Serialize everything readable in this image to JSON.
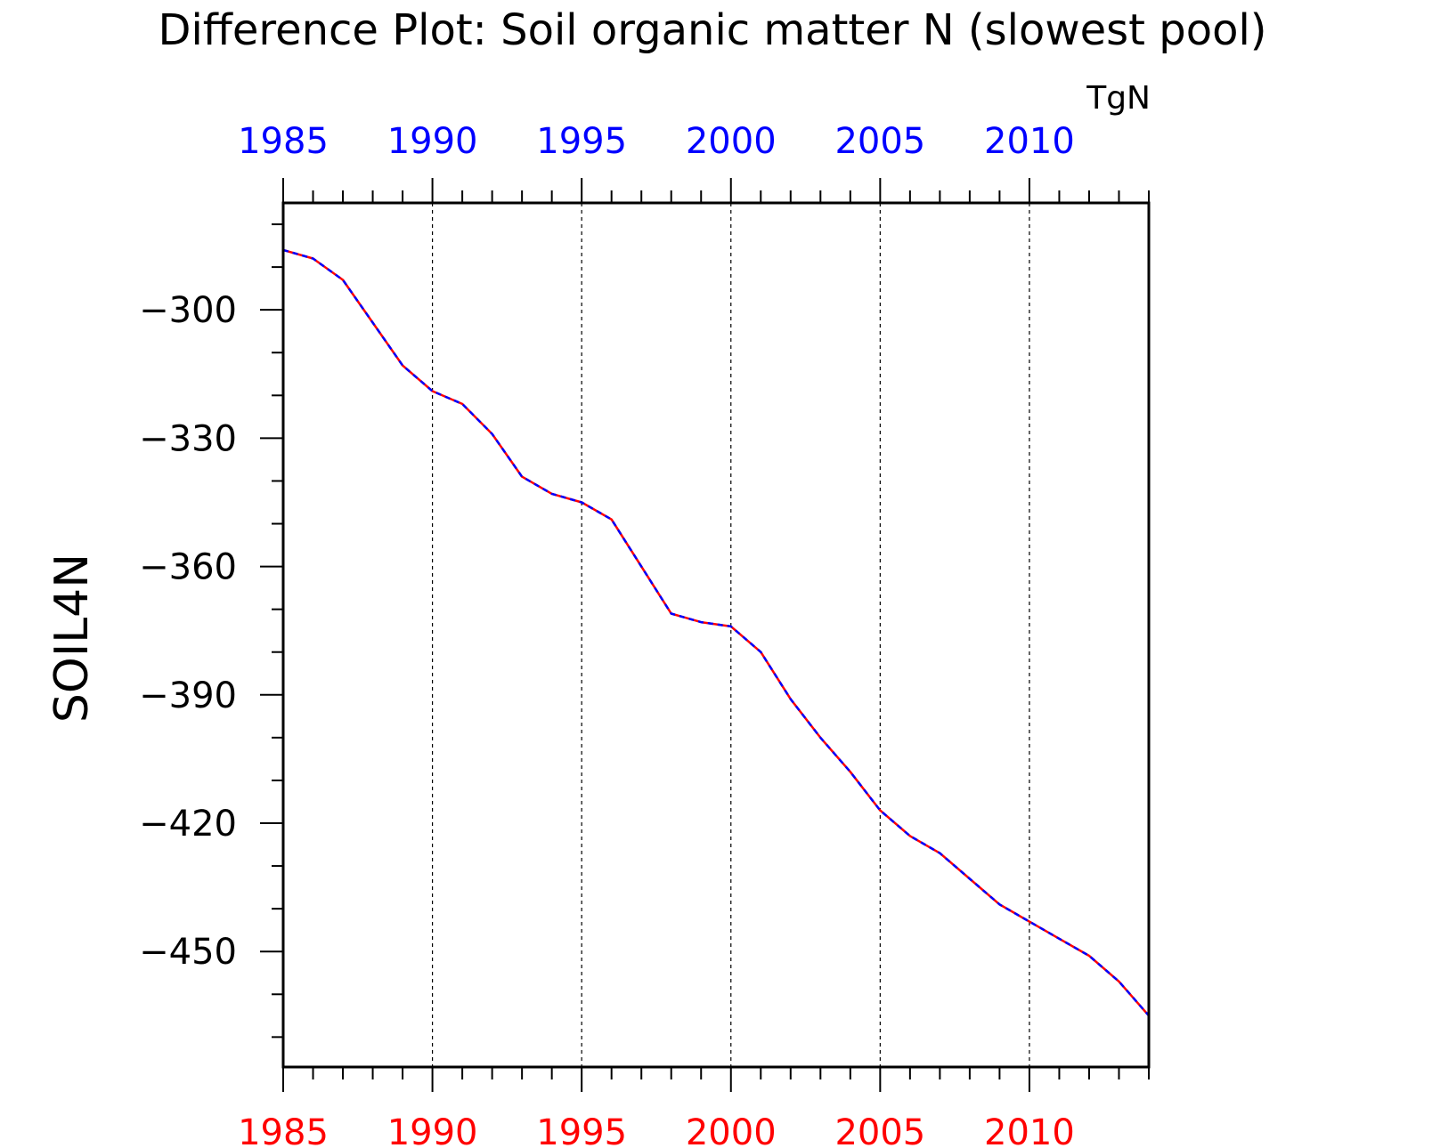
{
  "colors": {
    "series_a": "#ff0000",
    "series_b": "#0000ff",
    "axis": "#000000",
    "grid": "#000000",
    "background": "#ffffff"
  },
  "chart_data": {
    "type": "line",
    "title": "Difference Plot: Soil organic matter N (slowest pool)",
    "units": "TgN",
    "ylabel": "SOIL4N",
    "xlabel": "",
    "xlim": [
      1985,
      2014
    ],
    "ylim": [
      -477,
      -275
    ],
    "grid": "vertical dashed at major x ticks",
    "x_ticks": [
      1985,
      1990,
      1995,
      2000,
      2005,
      2010
    ],
    "x_tick_labels_top": [
      "1985",
      "1990",
      "1995",
      "2000",
      "2005",
      "2010"
    ],
    "x_tick_labels_bottom": [
      "1985",
      "1990",
      "1995",
      "2000",
      "2005",
      "2010"
    ],
    "x_top_color": "#0000ff",
    "x_bottom_color": "#ff0000",
    "y_ticks": [
      -300,
      -330,
      -360,
      -390,
      -420,
      -450
    ],
    "y_tick_labels": [
      "−300",
      "−330",
      "−360",
      "−390",
      "−420",
      "−450"
    ],
    "x": [
      1985,
      1986,
      1987,
      1988,
      1989,
      1990,
      1991,
      1992,
      1993,
      1994,
      1995,
      1996,
      1997,
      1998,
      1999,
      2000,
      2001,
      2002,
      2003,
      2004,
      2005,
      2006,
      2007,
      2008,
      2009,
      2010,
      2011,
      2012,
      2013,
      2014
    ],
    "series": [
      {
        "color": "#ff0000",
        "style": "solid",
        "values": [
          -286,
          -288,
          -293,
          -303,
          -313,
          -319,
          -322,
          -329,
          -339,
          -343,
          -345,
          -349,
          -360,
          -371,
          -373,
          -374,
          -380,
          -391,
          -400,
          -408,
          -417,
          -423,
          -427,
          -433,
          -439,
          -443,
          -447,
          -451,
          -457,
          -465
        ]
      },
      {
        "color": "#0000ff",
        "style": "dashed",
        "values": [
          -286,
          -288,
          -293,
          -303,
          -313,
          -319,
          -322,
          -329,
          -339,
          -343,
          -345,
          -349,
          -360,
          -371,
          -373,
          -374,
          -380,
          -391,
          -400,
          -408,
          -417,
          -423,
          -427,
          -433,
          -439,
          -443,
          -447,
          -451,
          -457,
          -465
        ]
      }
    ]
  }
}
